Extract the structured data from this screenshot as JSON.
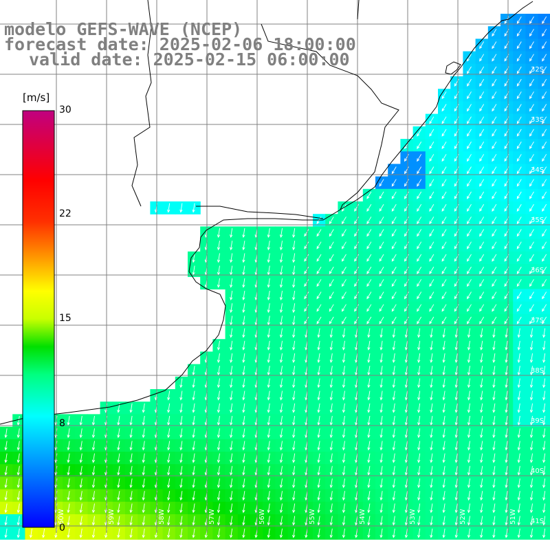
{
  "title": {
    "line1": "modelo GEFS-WAVE (NCEP)",
    "line2": "forecast date: 2025-02-06 18:00:00",
    "line3": "valid date: 2025-02-15 06:00:00"
  },
  "colorbar": {
    "unit": "[m/s]",
    "ticks": [
      {
        "value": 30,
        "label": "30"
      },
      {
        "value": 22,
        "label": "22"
      },
      {
        "value": 15,
        "label": "15"
      },
      {
        "value": 8,
        "label": "8"
      },
      {
        "value": 0,
        "label": "0"
      }
    ],
    "stops": [
      {
        "value": 0,
        "color": "#0000ff"
      },
      {
        "value": 4,
        "color": "#0080ff"
      },
      {
        "value": 8,
        "color": "#00ffff"
      },
      {
        "value": 11,
        "color": "#00ff80"
      },
      {
        "value": 13,
        "color": "#00e000"
      },
      {
        "value": 15,
        "color": "#c8ff00"
      },
      {
        "value": 17,
        "color": "#ffff00"
      },
      {
        "value": 20,
        "color": "#ff8000"
      },
      {
        "value": 22,
        "color": "#ff3000"
      },
      {
        "value": 25,
        "color": "#ff0000"
      },
      {
        "value": 30,
        "color": "#c00080"
      }
    ]
  },
  "axes": {
    "lat_labels": [
      "32S",
      "33S",
      "34S",
      "35S",
      "36S",
      "37S",
      "38S",
      "39S",
      "40S",
      "41S"
    ],
    "lon_labels": [
      "60W",
      "59W",
      "58W",
      "57W",
      "56W",
      "55W",
      "54W",
      "53W",
      "52W",
      "51W"
    ]
  },
  "colors": {
    "land": "#ffffff",
    "coastline": "#000000",
    "grid": "#808080",
    "arrows": "#ffffff",
    "title": "#808080"
  }
}
